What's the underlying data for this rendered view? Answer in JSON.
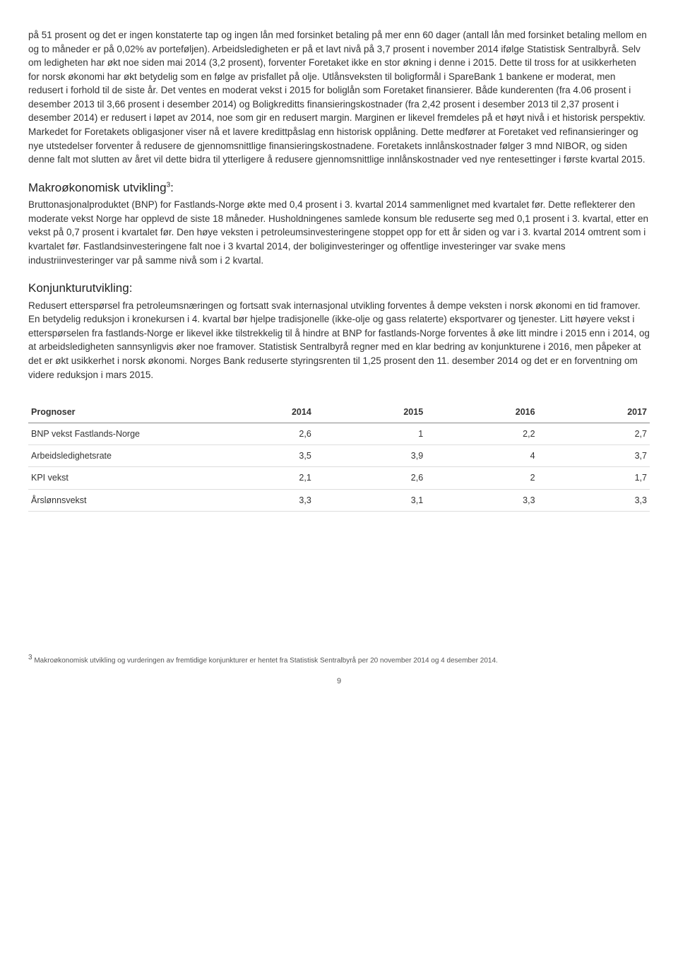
{
  "para1": "på 51 prosent og det er ingen konstaterte tap og ingen lån med forsinket betaling på mer enn 60 dager (antall lån med forsinket betaling mellom en og to måneder er på 0,02% av porteføljen). Arbeidsledigheten er på et lavt nivå på 3,7 prosent i november 2014 ifølge Statistisk Sentralbyrå. Selv om ledigheten har økt noe siden mai 2014 (3,2 prosent), forventer Foretaket ikke en stor økning i denne i 2015. Dette til tross for at usikkerheten for norsk økonomi har økt betydelig som en følge av prisfallet på olje. Utlånsveksten til boligformål i SpareBank 1 bankene er moderat, men redusert i forhold til de siste år. Det ventes en moderat vekst i 2015 for boliglån som Foretaket finansierer. Både kunderenten (fra 4.06 prosent i desember 2013 til 3,66 prosent i desember 2014) og Boligkreditts finansieringskostnader (fra 2,42 prosent i desember 2013 til 2,37 prosent i desember 2014) er redusert i løpet av 2014, noe som gir en redusert margin. Marginen er likevel fremdeles på et høyt nivå i et historisk perspektiv. Markedet for Foretakets obligasjoner viser nå et lavere kredittpåslag enn historisk opplåning. Dette medfører at Foretaket ved refinansieringer og nye utstedelser forventer å redusere de gjennomsnittlige finansieringskostnadene. Foretakets innlånskostnader følger 3 mnd NIBOR, og siden denne falt mot slutten av året vil dette bidra til ytterligere å redusere gjennomsnittlige innlånskostnader ved nye rentesettinger i første kvartal 2015.",
  "heading1": "Makroøkonomisk utvikling",
  "heading1_sup": "3",
  "heading1_colon": ":",
  "para2": "Bruttonasjonalproduktet (BNP) for Fastlands-Norge økte med 0,4 prosent i 3. kvartal 2014 sammenlignet med kvartalet før. Dette reflekterer den moderate vekst Norge har opplevd de siste 18 måneder. Husholdningenes samlede konsum ble reduserte seg med 0,1 prosent i 3. kvartal, etter en vekst på 0,7 prosent i kvartalet før. Den høye veksten i petroleumsinvesteringene stoppet opp for ett år siden og var i 3. kvartal 2014 omtrent som i kvartalet før. Fastlandsinvesteringene falt noe i 3 kvartal 2014, der boliginvesteringer og offentlige investeringer var svake mens industriinvesteringer var på samme nivå som i 2 kvartal.",
  "heading2": "Konjunkturutvikling:",
  "para3": "Redusert etterspørsel fra petroleumsnæringen og fortsatt svak internasjonal utvikling forventes å dempe veksten i norsk økonomi en tid framover. En betydelig reduksjon i kronekursen i 4. kvartal bør hjelpe tradisjonelle (ikke-olje og gass relaterte) eksportvarer og tjenester. Litt høyere vekst i etterspørselen fra fastlands-Norge er likevel ikke tilstrekkelig til å hindre at BNP for fastlands-Norge forventes å øke litt mindre i 2015 enn i 2014, og at arbeidsledigheten sannsynligvis øker noe framover. Statistisk Sentralbyrå regner med en klar bedring av konjunkturene i 2016, men påpeker at det er økt usikkerhet i norsk økonomi. Norges Bank reduserte styringsrenten til 1,25 prosent den 11. desember 2014 og det er en forventning om videre reduksjon i mars 2015.",
  "table": {
    "columns": [
      "Prognoser",
      "2014",
      "2015",
      "2016",
      "2017"
    ],
    "rows": [
      [
        "BNP vekst Fastlands-Norge",
        "2,6",
        "1",
        "2,2",
        "2,7"
      ],
      [
        "Arbeidsledighetsrate",
        "3,5",
        "3,9",
        "4",
        "3,7"
      ],
      [
        "KPI vekst",
        "2,1",
        "2,6",
        "2",
        "1,7"
      ],
      [
        "Årslønnsvekst",
        "3,3",
        "3,1",
        "3,3",
        "3,3"
      ]
    ]
  },
  "footnote_sup": "3",
  "footnote": " Makroøkonomisk utvikling og vurderingen av fremtidige konjunkturer er hentet fra Statistisk Sentralbyrå per 20 november 2014 og 4 desember 2014.",
  "pagenum": "9"
}
